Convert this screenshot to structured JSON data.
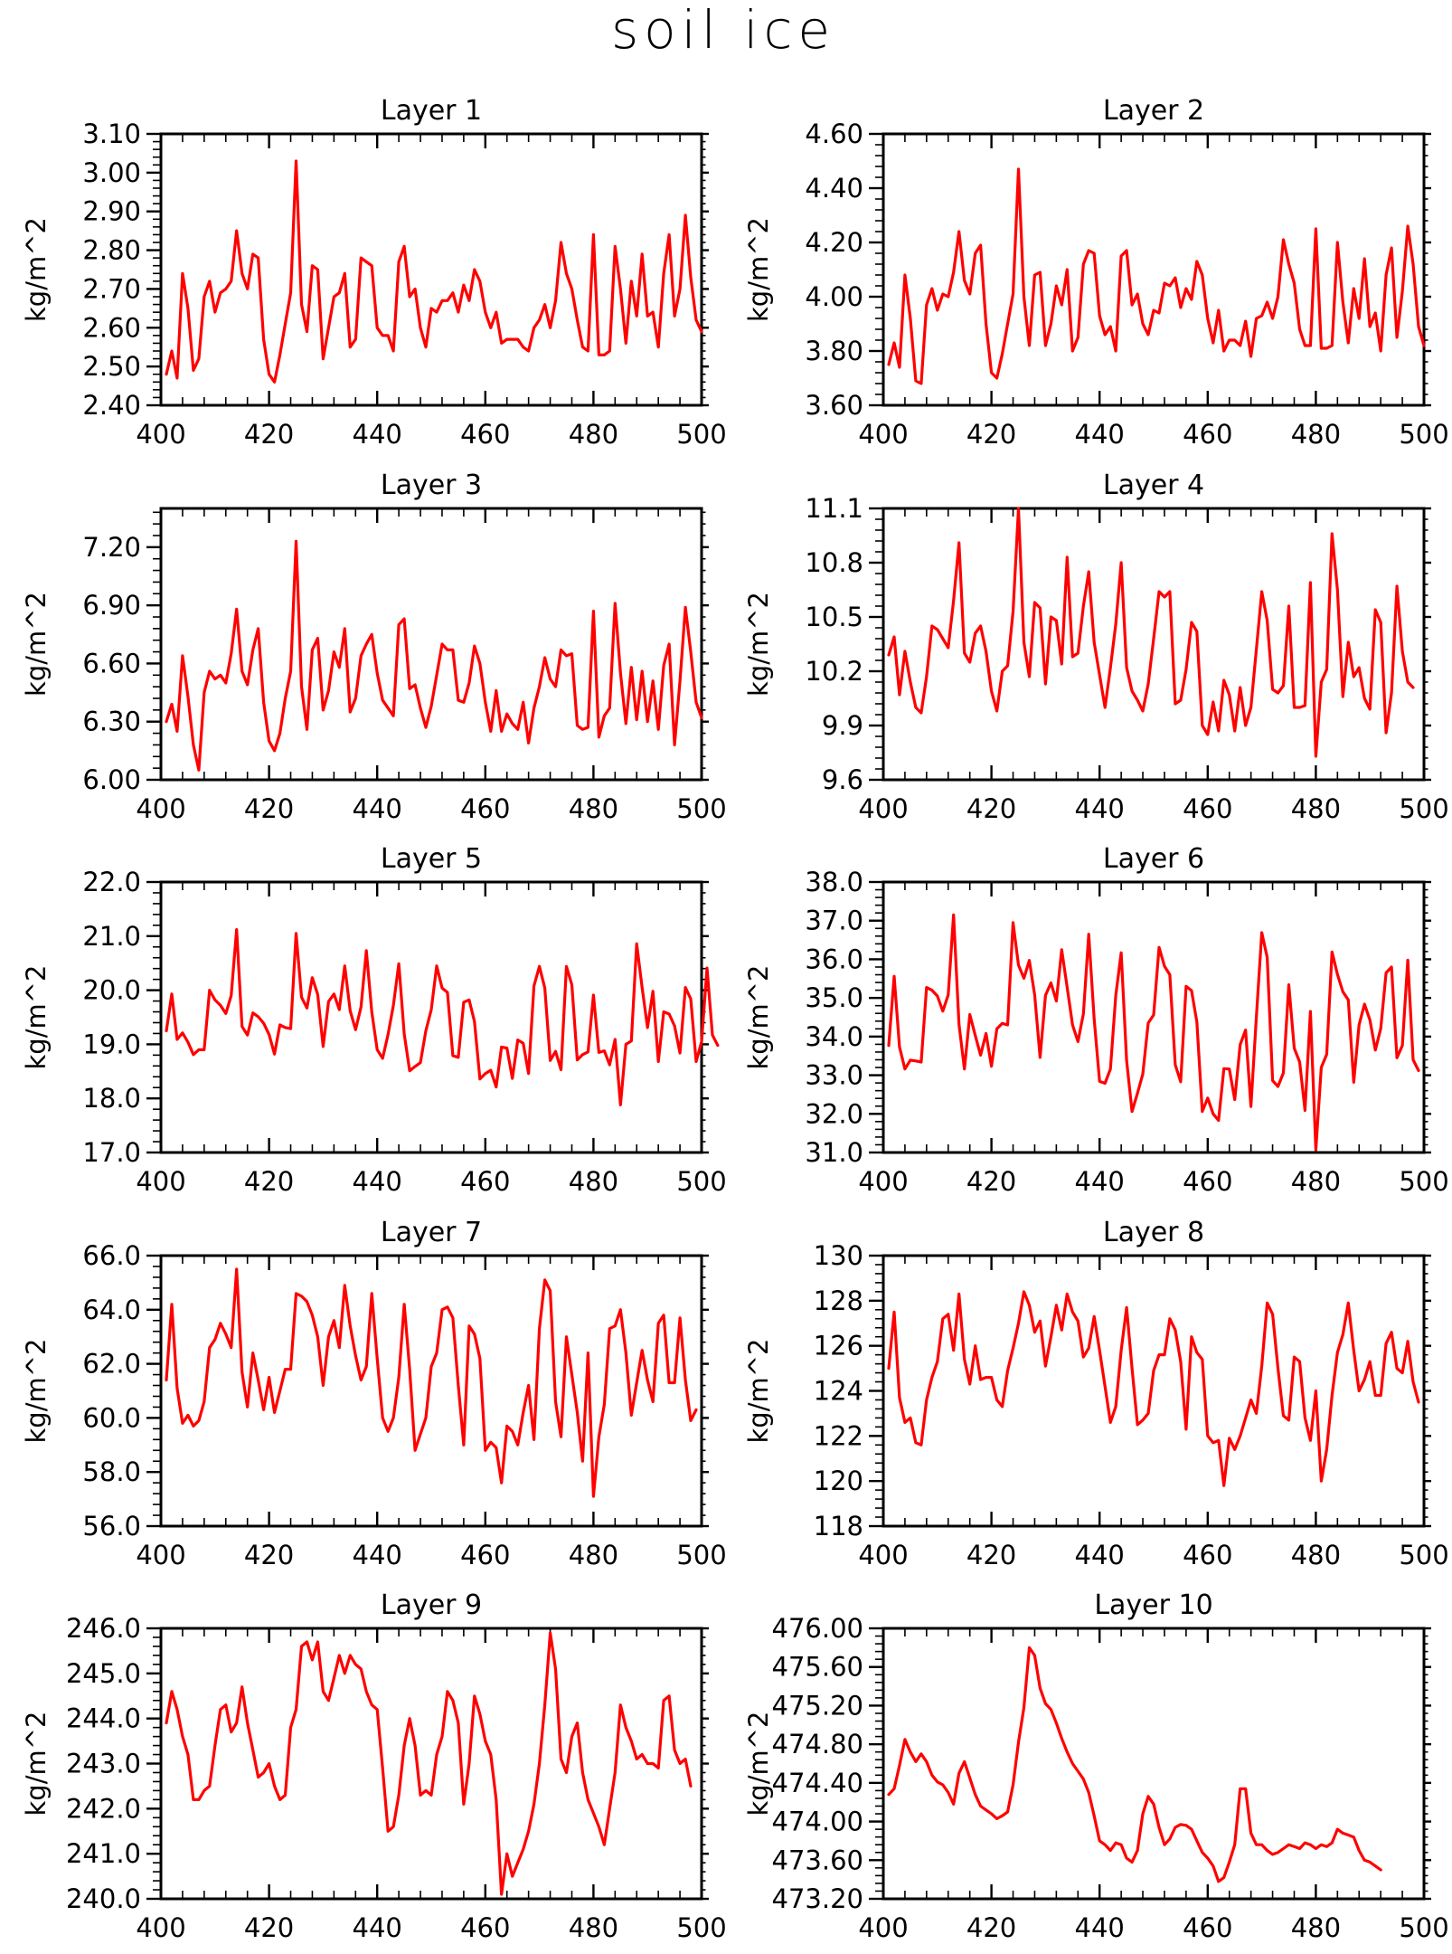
{
  "figure": {
    "title": "soil ice"
  },
  "colors": {
    "series": "#ff0000",
    "axis": "#000000",
    "background": "#ffffff"
  },
  "chart_data": [
    {
      "type": "line",
      "title": "Layer 1",
      "ylabel": "kg/m^2",
      "xlim": [
        400,
        500
      ],
      "ylim": [
        2.4,
        3.1
      ],
      "xticks": [
        "400",
        "420",
        "440",
        "460",
        "480",
        "500"
      ],
      "yticks": [
        "2.40",
        "2.50",
        "2.60",
        "2.70",
        "2.80",
        "2.90",
        "3.00",
        "3.10"
      ],
      "x_start": 401,
      "x_step": 1,
      "values": [
        2.48,
        2.54,
        2.47,
        2.74,
        2.65,
        2.49,
        2.52,
        2.68,
        2.72,
        2.64,
        2.69,
        2.7,
        2.72,
        2.85,
        2.74,
        2.7,
        2.79,
        2.78,
        2.57,
        2.48,
        2.46,
        2.53,
        2.61,
        2.69,
        3.03,
        2.66,
        2.59,
        2.76,
        2.75,
        2.52,
        2.6,
        2.68,
        2.69,
        2.74,
        2.55,
        2.57,
        2.78,
        2.77,
        2.76,
        2.6,
        2.58,
        2.58,
        2.54,
        2.77,
        2.81,
        2.68,
        2.7,
        2.6,
        2.55,
        2.65,
        2.64,
        2.67,
        2.67,
        2.69,
        2.64,
        2.71,
        2.67,
        2.75,
        2.72,
        2.64,
        2.6,
        2.64,
        2.56,
        2.57,
        2.57,
        2.57,
        2.55,
        2.54,
        2.6,
        2.62,
        2.66,
        2.6,
        2.67,
        2.82,
        2.74,
        2.7,
        2.62,
        2.55,
        2.54,
        2.84,
        2.53,
        2.53,
        2.54,
        2.81,
        2.7,
        2.56,
        2.72,
        2.63,
        2.79,
        2.63,
        2.64,
        2.55,
        2.74,
        2.84,
        2.63,
        2.7,
        2.89,
        2.73,
        2.62,
        2.59
      ]
    },
    {
      "type": "line",
      "title": "Layer 2",
      "ylabel": "kg/m^2",
      "xlim": [
        400,
        500
      ],
      "ylim": [
        3.6,
        4.6
      ],
      "xticks": [
        "400",
        "420",
        "440",
        "460",
        "480",
        "500"
      ],
      "yticks": [
        "3.60",
        "3.80",
        "4.00",
        "4.20",
        "4.40",
        "4.60"
      ],
      "x_start": 401,
      "x_step": 1,
      "values": [
        3.75,
        3.83,
        3.74,
        4.08,
        3.92,
        3.69,
        3.68,
        3.97,
        4.03,
        3.95,
        4.01,
        4.0,
        4.09,
        4.24,
        4.06,
        4.01,
        4.16,
        4.19,
        3.9,
        3.72,
        3.7,
        3.79,
        3.9,
        4.01,
        4.47,
        4.0,
        3.82,
        4.08,
        4.09,
        3.82,
        3.9,
        4.04,
        3.97,
        4.1,
        3.8,
        3.85,
        4.12,
        4.17,
        4.16,
        3.93,
        3.86,
        3.89,
        3.8,
        4.15,
        4.17,
        3.97,
        4.01,
        3.9,
        3.86,
        3.95,
        3.94,
        4.05,
        4.04,
        4.07,
        3.96,
        4.03,
        3.99,
        4.13,
        4.08,
        3.92,
        3.83,
        3.95,
        3.8,
        3.84,
        3.84,
        3.82,
        3.91,
        3.78,
        3.92,
        3.93,
        3.98,
        3.92,
        4.0,
        4.21,
        4.12,
        4.05,
        3.88,
        3.82,
        3.82,
        4.25,
        3.81,
        3.81,
        3.82,
        4.2,
        3.98,
        3.83,
        4.03,
        3.92,
        4.14,
        3.89,
        3.94,
        3.8,
        4.08,
        4.18,
        3.85,
        4.02,
        4.26,
        4.12,
        3.89,
        3.82
      ]
    },
    {
      "type": "line",
      "title": "Layer 3",
      "ylabel": "kg/m^2",
      "xlim": [
        400,
        500
      ],
      "ylim": [
        6.0,
        7.4
      ],
      "xticks": [
        "400",
        "420",
        "440",
        "460",
        "480",
        "500"
      ],
      "yticks": [
        "6.00",
        "6.30",
        "6.60",
        "6.90",
        "7.20"
      ],
      "x_start": 401,
      "x_step": 1,
      "values": [
        6.3,
        6.39,
        6.25,
        6.64,
        6.43,
        6.18,
        6.05,
        6.45,
        6.56,
        6.52,
        6.54,
        6.5,
        6.65,
        6.88,
        6.56,
        6.49,
        6.67,
        6.78,
        6.4,
        6.2,
        6.15,
        6.24,
        6.42,
        6.56,
        7.23,
        6.48,
        6.26,
        6.67,
        6.73,
        6.36,
        6.46,
        6.66,
        6.58,
        6.78,
        6.35,
        6.42,
        6.64,
        6.7,
        6.75,
        6.55,
        6.41,
        6.37,
        6.33,
        6.8,
        6.83,
        6.47,
        6.49,
        6.37,
        6.27,
        6.38,
        6.54,
        6.7,
        6.67,
        6.67,
        6.41,
        6.4,
        6.5,
        6.69,
        6.6,
        6.4,
        6.25,
        6.46,
        6.25,
        6.34,
        6.29,
        6.26,
        6.4,
        6.19,
        6.37,
        6.48,
        6.63,
        6.52,
        6.48,
        6.67,
        6.64,
        6.65,
        6.28,
        6.26,
        6.27,
        6.87,
        6.22,
        6.33,
        6.37,
        6.91,
        6.55,
        6.29,
        6.58,
        6.31,
        6.56,
        6.3,
        6.51,
        6.26,
        6.59,
        6.7,
        6.18,
        6.51,
        6.89,
        6.66,
        6.4,
        6.32
      ]
    },
    {
      "type": "line",
      "title": "Layer 4",
      "ylabel": "kg/m^2",
      "xlim": [
        400,
        500
      ],
      "ylim": [
        9.6,
        11.1
      ],
      "xticks": [
        "400",
        "420",
        "440",
        "460",
        "480",
        "500"
      ],
      "yticks": [
        "9.6",
        "9.9",
        "10.2",
        "10.5",
        "10.8",
        "11.1"
      ],
      "x_start": 401,
      "x_step": 1,
      "values": [
        10.29,
        10.39,
        10.07,
        10.31,
        10.14,
        10.0,
        9.97,
        10.17,
        10.45,
        10.43,
        10.38,
        10.33,
        10.59,
        10.91,
        10.3,
        10.25,
        10.41,
        10.45,
        10.31,
        10.09,
        9.98,
        10.2,
        10.23,
        10.53,
        11.1,
        10.36,
        10.17,
        10.58,
        10.55,
        10.13,
        10.5,
        10.48,
        10.24,
        10.83,
        10.28,
        10.3,
        10.56,
        10.75,
        10.36,
        10.18,
        10.0,
        10.22,
        10.46,
        10.8,
        10.22,
        10.09,
        10.04,
        9.98,
        10.13,
        10.38,
        10.64,
        10.61,
        10.64,
        10.02,
        10.04,
        10.21,
        10.47,
        10.42,
        9.9,
        9.85,
        10.03,
        9.87,
        10.15,
        10.07,
        9.87,
        10.11,
        9.9,
        10.0,
        10.32,
        10.64,
        10.48,
        10.1,
        10.08,
        10.12,
        10.56,
        10.0,
        10.0,
        10.01,
        10.69,
        9.73,
        10.14,
        10.21,
        10.96,
        10.65,
        10.06,
        10.36,
        10.17,
        10.22,
        10.05,
        9.99,
        10.54,
        10.47,
        9.86,
        10.08,
        10.67,
        10.31,
        10.14,
        10.11
      ]
    },
    {
      "type": "line",
      "title": "Layer 5",
      "ylabel": "kg/m^2",
      "xlim": [
        400,
        500
      ],
      "ylim": [
        17.0,
        22.0
      ],
      "xticks": [
        "400",
        "420",
        "440",
        "460",
        "480",
        "500"
      ],
      "yticks": [
        "17.0",
        "18.0",
        "19.0",
        "20.0",
        "21.0",
        "22.0"
      ],
      "x_start": 401,
      "x_step": 1,
      "values": [
        19.25,
        19.93,
        19.09,
        19.21,
        19.04,
        18.81,
        18.9,
        18.9,
        20.0,
        19.82,
        19.72,
        19.57,
        19.9,
        21.12,
        19.33,
        19.17,
        19.58,
        19.51,
        19.39,
        19.18,
        18.82,
        19.36,
        19.31,
        19.29,
        21.05,
        19.87,
        19.67,
        20.23,
        19.92,
        18.96,
        19.79,
        19.93,
        19.64,
        20.45,
        19.62,
        19.27,
        19.69,
        20.73,
        19.6,
        18.9,
        18.74,
        19.18,
        19.72,
        20.49,
        19.19,
        18.51,
        18.59,
        18.66,
        19.25,
        19.64,
        20.45,
        20.04,
        19.96,
        18.79,
        18.76,
        19.78,
        19.82,
        19.42,
        18.36,
        18.46,
        18.52,
        18.21,
        18.95,
        18.93,
        18.37,
        19.08,
        19.02,
        18.46,
        20.08,
        20.44,
        20.04,
        18.7,
        18.87,
        18.53,
        20.44,
        20.1,
        18.71,
        18.81,
        18.86,
        19.91,
        18.85,
        18.88,
        18.62,
        19.09,
        17.88,
        19.0,
        19.06,
        20.86,
        20.05,
        19.31,
        19.98,
        18.68,
        19.6,
        19.56,
        19.34,
        18.84,
        20.05,
        19.84,
        18.68,
        19.05,
        20.41,
        19.17,
        18.98
      ]
    },
    {
      "type": "line",
      "title": "Layer 6",
      "ylabel": "kg/m^2",
      "xlim": [
        400,
        500
      ],
      "ylim": [
        31.0,
        38.0
      ],
      "xticks": [
        "400",
        "420",
        "440",
        "460",
        "480",
        "500"
      ],
      "yticks": [
        "31.0",
        "32.0",
        "33.0",
        "34.0",
        "35.0",
        "36.0",
        "37.0",
        "38.0"
      ],
      "x_start": 401,
      "x_step": 1,
      "values": [
        33.77,
        35.56,
        33.73,
        33.16,
        33.39,
        33.37,
        33.34,
        35.27,
        35.2,
        35.05,
        34.66,
        35.08,
        37.15,
        34.32,
        33.16,
        34.57,
        34.03,
        33.52,
        34.08,
        33.23,
        34.2,
        34.34,
        34.3,
        36.95,
        35.85,
        35.51,
        35.97,
        35.08,
        33.46,
        35.07,
        35.39,
        34.92,
        36.25,
        35.28,
        34.3,
        33.87,
        34.59,
        36.65,
        34.46,
        32.84,
        32.79,
        33.16,
        35.06,
        36.17,
        33.38,
        32.06,
        32.53,
        33.03,
        34.35,
        34.56,
        36.31,
        35.82,
        35.6,
        33.27,
        32.83,
        35.3,
        35.19,
        34.38,
        32.06,
        32.41,
        32.0,
        31.83,
        33.17,
        33.16,
        32.37,
        33.79,
        34.17,
        32.19,
        34.5,
        36.69,
        36.05,
        32.86,
        32.71,
        33.06,
        35.34,
        33.7,
        33.34,
        32.09,
        34.65,
        31.07,
        33.2,
        33.54,
        36.19,
        35.61,
        35.16,
        34.95,
        32.82,
        34.3,
        34.84,
        34.43,
        33.65,
        34.21,
        35.65,
        35.8,
        33.45,
        33.77,
        35.98,
        33.4,
        33.12
      ]
    },
    {
      "type": "line",
      "title": "Layer 7",
      "ylabel": "kg/m^2",
      "xlim": [
        400,
        500
      ],
      "ylim": [
        56.0,
        66.0
      ],
      "xticks": [
        "400",
        "420",
        "440",
        "460",
        "480",
        "500"
      ],
      "yticks": [
        "56.0",
        "58.0",
        "60.0",
        "62.0",
        "64.0",
        "66.0"
      ],
      "x_start": 401,
      "x_step": 1,
      "values": [
        61.4,
        64.2,
        61.1,
        59.8,
        60.1,
        59.7,
        59.9,
        60.6,
        62.6,
        62.9,
        63.5,
        63.1,
        62.6,
        65.5,
        61.7,
        60.4,
        62.4,
        61.4,
        60.3,
        61.5,
        60.2,
        61.0,
        61.8,
        61.8,
        64.6,
        64.5,
        64.3,
        63.8,
        63.0,
        61.2,
        63.0,
        63.6,
        62.6,
        64.9,
        63.4,
        62.3,
        61.4,
        61.9,
        64.6,
        62.2,
        60.0,
        59.5,
        60.0,
        61.5,
        64.2,
        61.8,
        58.8,
        59.4,
        60.0,
        61.9,
        62.4,
        64.0,
        64.1,
        63.7,
        61.2,
        59.0,
        63.4,
        63.1,
        62.2,
        58.8,
        59.1,
        58.9,
        57.6,
        59.7,
        59.5,
        59.0,
        60.2,
        61.2,
        59.2,
        63.3,
        65.1,
        64.7,
        60.6,
        59.3,
        63.0,
        61.6,
        60.2,
        58.4,
        62.4,
        57.1,
        59.3,
        60.5,
        63.3,
        63.4,
        64.0,
        62.4,
        60.1,
        61.3,
        62.5,
        61.4,
        60.6,
        63.5,
        63.8,
        61.3,
        61.3,
        63.7,
        61.4,
        59.9,
        60.3
      ]
    },
    {
      "type": "line",
      "title": "Layer 8",
      "ylabel": "kg/m^2",
      "xlim": [
        400,
        500
      ],
      "ylim": [
        118,
        130
      ],
      "xticks": [
        "400",
        "420",
        "440",
        "460",
        "480",
        "500"
      ],
      "yticks": [
        "118",
        "120",
        "122",
        "124",
        "126",
        "128",
        "130"
      ],
      "x_start": 401,
      "x_step": 1,
      "values": [
        125.0,
        127.5,
        123.7,
        122.6,
        122.8,
        121.7,
        121.6,
        123.6,
        124.6,
        125.3,
        127.2,
        127.4,
        125.8,
        128.3,
        125.4,
        124.3,
        126.0,
        124.5,
        124.6,
        124.6,
        123.6,
        123.3,
        124.9,
        125.9,
        127.0,
        128.4,
        127.8,
        126.6,
        127.1,
        125.1,
        126.4,
        127.8,
        126.7,
        128.3,
        127.5,
        127.1,
        125.5,
        125.9,
        127.3,
        125.8,
        124.2,
        122.6,
        123.3,
        125.8,
        127.7,
        125.0,
        122.5,
        122.7,
        123.0,
        124.9,
        125.6,
        125.6,
        127.2,
        126.7,
        125.3,
        122.3,
        126.4,
        125.7,
        125.4,
        122.0,
        121.7,
        121.8,
        119.8,
        121.9,
        121.4,
        122.0,
        122.8,
        123.6,
        123.0,
        125.1,
        127.9,
        127.4,
        125.0,
        122.9,
        122.7,
        125.5,
        125.3,
        122.8,
        121.8,
        124.0,
        120.0,
        121.4,
        123.8,
        125.7,
        126.5,
        127.9,
        125.8,
        124.0,
        124.5,
        125.3,
        123.8,
        123.8,
        126.1,
        126.6,
        125.0,
        124.8,
        126.2,
        124.4,
        123.5
      ]
    },
    {
      "type": "line",
      "title": "Layer 9",
      "ylabel": "kg/m^2",
      "xlim": [
        400,
        500
      ],
      "ylim": [
        240.0,
        246.0
      ],
      "xticks": [
        "400",
        "420",
        "440",
        "460",
        "480",
        "500"
      ],
      "yticks": [
        "240.0",
        "241.0",
        "242.0",
        "243.0",
        "244.0",
        "245.0",
        "246.0"
      ],
      "x_start": 401,
      "x_step": 1,
      "values": [
        243.9,
        244.6,
        244.2,
        243.6,
        243.2,
        242.2,
        242.2,
        242.4,
        242.5,
        243.4,
        244.2,
        244.3,
        243.7,
        243.9,
        244.7,
        243.9,
        243.3,
        242.7,
        242.8,
        243.0,
        242.5,
        242.2,
        242.3,
        243.8,
        244.2,
        245.6,
        245.7,
        245.3,
        245.7,
        244.6,
        244.4,
        244.9,
        245.4,
        245.0,
        245.4,
        245.2,
        245.1,
        244.6,
        244.3,
        244.2,
        242.9,
        241.5,
        241.6,
        242.3,
        243.4,
        244.0,
        243.4,
        242.3,
        242.4,
        242.3,
        243.2,
        243.6,
        244.6,
        244.4,
        243.9,
        242.1,
        243.0,
        244.5,
        244.1,
        243.5,
        243.2,
        242.2,
        240.1,
        241.0,
        240.5,
        240.8,
        241.1,
        241.5,
        242.1,
        243.0,
        244.3,
        245.9,
        245.1,
        243.1,
        242.8,
        243.6,
        243.9,
        242.8,
        242.2,
        241.9,
        241.6,
        241.2,
        242.0,
        242.8,
        244.3,
        243.8,
        243.5,
        243.1,
        243.2,
        243.0,
        243.0,
        242.9,
        244.4,
        244.5,
        243.3,
        243.0,
        243.1,
        242.5
      ]
    },
    {
      "type": "line",
      "title": "Layer 10",
      "ylabel": "kg/m^2",
      "xlim": [
        400,
        500
      ],
      "ylim": [
        473.2,
        476.0
      ],
      "xticks": [
        "400",
        "420",
        "440",
        "460",
        "480",
        "500"
      ],
      "yticks": [
        "473.20",
        "473.60",
        "474.00",
        "474.40",
        "474.80",
        "475.20",
        "475.60",
        "476.00"
      ],
      "x_start": 401,
      "x_step": 1,
      "values": [
        474.28,
        474.34,
        474.58,
        474.85,
        474.72,
        474.62,
        474.7,
        474.62,
        474.48,
        474.41,
        474.38,
        474.3,
        474.18,
        474.5,
        474.62,
        474.45,
        474.28,
        474.16,
        474.12,
        474.08,
        474.03,
        474.06,
        474.1,
        474.38,
        474.82,
        475.18,
        475.8,
        475.72,
        475.38,
        475.22,
        475.16,
        475.02,
        474.86,
        474.72,
        474.6,
        474.52,
        474.44,
        474.3,
        474.06,
        473.8,
        473.76,
        473.7,
        473.78,
        473.76,
        473.62,
        473.58,
        473.7,
        474.08,
        474.26,
        474.18,
        473.94,
        473.76,
        473.82,
        473.94,
        473.97,
        473.96,
        473.92,
        473.8,
        473.68,
        473.62,
        473.54,
        473.38,
        473.42,
        473.58,
        473.76,
        474.34,
        474.34,
        473.88,
        473.76,
        473.76,
        473.7,
        473.66,
        473.68,
        473.72,
        473.76,
        473.74,
        473.72,
        473.78,
        473.76,
        473.72,
        473.76,
        473.74,
        473.78,
        473.92,
        473.88,
        473.86,
        473.84,
        473.7,
        473.6,
        473.58,
        473.54,
        473.5
      ]
    }
  ]
}
